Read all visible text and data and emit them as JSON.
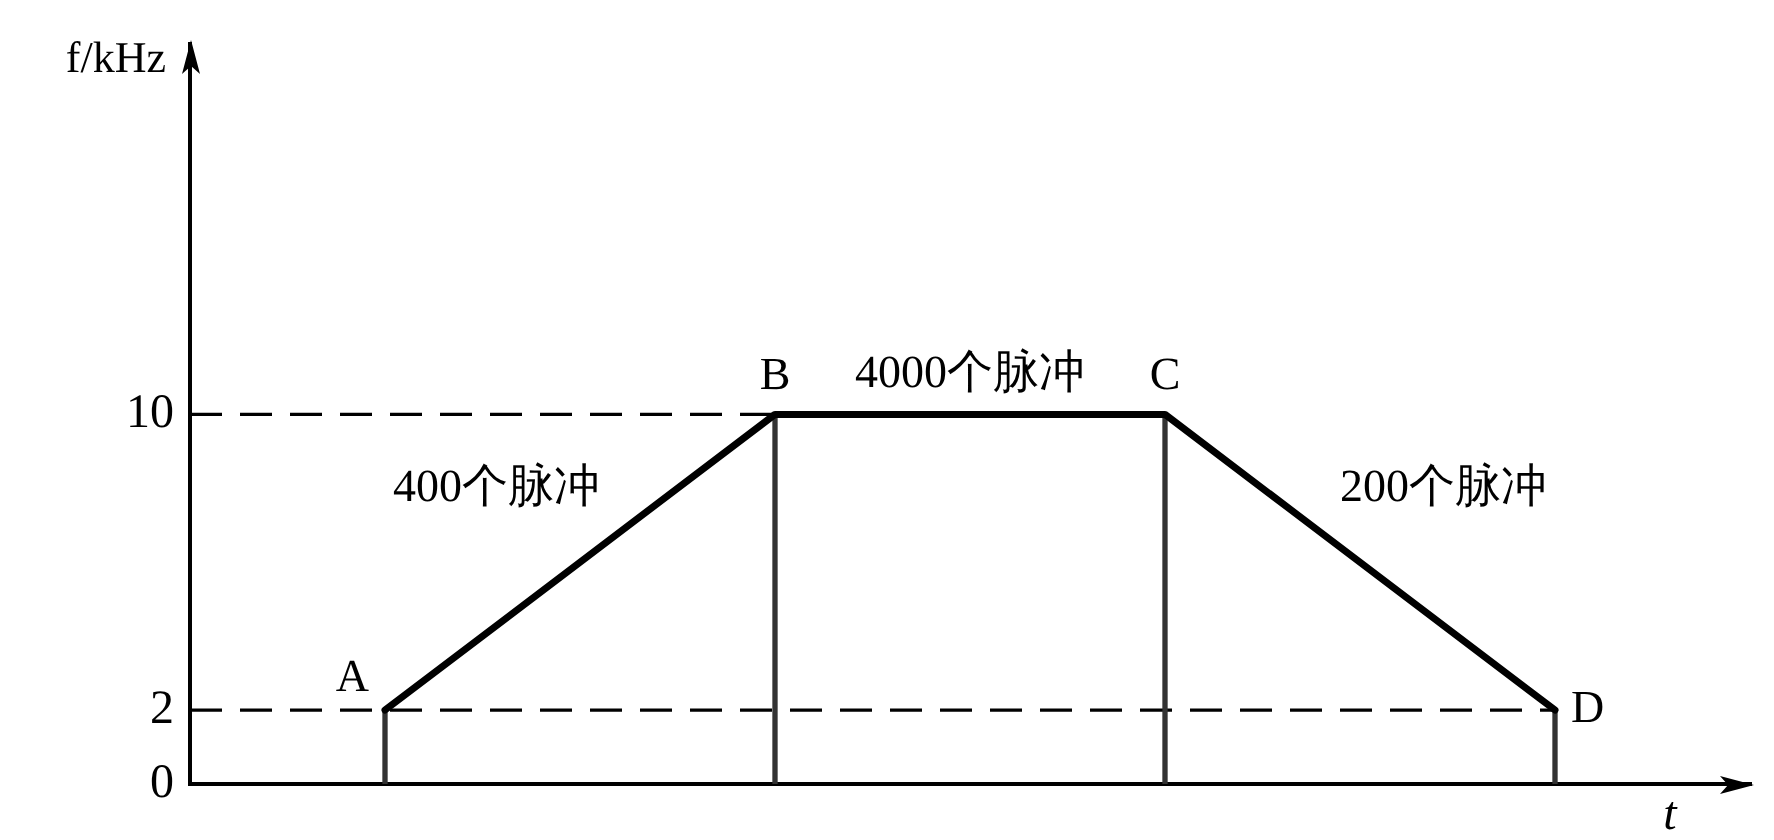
{
  "chart_data": {
    "type": "line",
    "xlabel": "t",
    "ylabel": "f/kHz",
    "categories": [
      null,
      null,
      null,
      null
    ],
    "series": [
      {
        "color": "#000000",
        "values": [
          2,
          10,
          10,
          2
        ]
      },
      {
        "type": "bar",
        "color": "#333333",
        "values": [
          2,
          10,
          10,
          2
        ]
      }
    ],
    "ylim": [
      0,
      20
    ],
    "yticks": [
      0,
      2,
      10
    ],
    "tick_labels": "y",
    "marker": "none",
    "line_style": "solid",
    "ref_lines": [
      {
        "axis": "y",
        "value": 10,
        "line_style": "dashed",
        "color": "#000000"
      },
      {
        "axis": "y",
        "value": 2,
        "line_style": "dashed",
        "color": "#000000"
      }
    ],
    "annotations": [
      {
        "text": "A",
        "y": 2
      },
      {
        "text": "B",
        "y": 10
      },
      {
        "text": "C",
        "y": 10
      },
      "D",
      "400个脉冲",
      "4000个脉冲",
      "200个脉冲"
    ]
  }
}
